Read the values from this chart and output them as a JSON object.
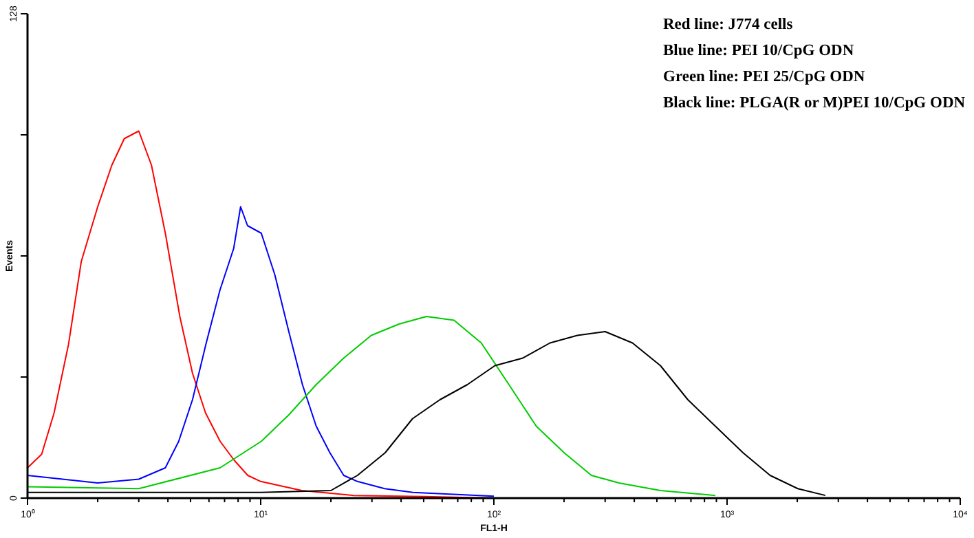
{
  "chart_data": {
    "type": "line",
    "xlabel": "FL1-H",
    "ylabel": "Events",
    "log": "x",
    "xlim": [
      1,
      10000
    ],
    "ylim": [
      0,
      128
    ],
    "xticks": [
      {
        "value": 1,
        "label": "10⁰"
      },
      {
        "value": 2,
        "label": null
      },
      {
        "value": 3,
        "label": null
      },
      {
        "value": 4,
        "label": null
      },
      {
        "value": 5,
        "label": null
      },
      {
        "value": 6,
        "label": null
      },
      {
        "value": 7,
        "label": null
      },
      {
        "value": 8,
        "label": null
      },
      {
        "value": 9,
        "label": null
      },
      {
        "value": 10,
        "label": "10¹"
      },
      {
        "value": 20,
        "label": null
      },
      {
        "value": 30,
        "label": null
      },
      {
        "value": 40,
        "label": null
      },
      {
        "value": 50,
        "label": null
      },
      {
        "value": 60,
        "label": null
      },
      {
        "value": 70,
        "label": null
      },
      {
        "value": 80,
        "label": null
      },
      {
        "value": 90,
        "label": null
      },
      {
        "value": 100,
        "label": "10²"
      },
      {
        "value": 200,
        "label": null
      },
      {
        "value": 300,
        "label": null
      },
      {
        "value": 400,
        "label": null
      },
      {
        "value": 500,
        "label": null
      },
      {
        "value": 600,
        "label": null
      },
      {
        "value": 700,
        "label": null
      },
      {
        "value": 800,
        "label": null
      },
      {
        "value": 900,
        "label": null
      },
      {
        "value": 1000,
        "label": "10³"
      },
      {
        "value": 2000,
        "label": null
      },
      {
        "value": 3000,
        "label": null
      },
      {
        "value": 4000,
        "label": null
      },
      {
        "value": 5000,
        "label": null
      },
      {
        "value": 6000,
        "label": null
      },
      {
        "value": 7000,
        "label": null
      },
      {
        "value": 8000,
        "label": null
      },
      {
        "value": 9000,
        "label": null
      },
      {
        "value": 10000,
        "label": "10⁴"
      }
    ],
    "yticks": [
      0,
      {
        "value": 32,
        "label": null
      },
      {
        "value": 64,
        "label": null
      },
      {
        "value": 96,
        "label": null
      },
      128
    ],
    "grid": false,
    "marker": "none",
    "line_style": "solid",
    "series": [
      {
        "color": "#ff0000",
        "x": [
          1,
          1.15,
          1.3,
          1.5,
          1.7,
          2,
          2.3,
          2.6,
          3,
          3.4,
          3.9,
          4.5,
          5.1,
          5.8,
          6.7,
          7.7,
          8.8,
          10,
          15,
          25,
          50,
          100
        ],
        "values": [
          8,
          11.6,
          22.5,
          40.7,
          62.5,
          77,
          88,
          95,
          97,
          88,
          70,
          48,
          33,
          22.5,
          15,
          10,
          6,
          4.4,
          2,
          0.7,
          0.4,
          0
        ]
      },
      {
        "color": "#0000ff",
        "x": [
          1,
          2,
          3,
          3.9,
          4.45,
          5.1,
          5.84,
          6.69,
          7.66,
          8.2,
          8.78,
          10.06,
          11.5,
          13.2,
          15.1,
          17.3,
          19.8,
          22.7,
          26,
          34,
          45,
          100
        ],
        "values": [
          6,
          4,
          5,
          8,
          15,
          26,
          41,
          55,
          66,
          77,
          72,
          70,
          59,
          44,
          30,
          19,
          12,
          6,
          4.4,
          2.5,
          1.5,
          0.5
        ]
      },
      {
        "color": "#00cc00",
        "x": [
          1,
          3,
          6.69,
          10.06,
          13.2,
          17.3,
          22.7,
          29.8,
          39.2,
          51.4,
          67.5,
          88.3,
          116,
          152,
          200,
          262,
          344,
          518,
          891
        ],
        "values": [
          3,
          2.5,
          8,
          15,
          22,
          30,
          37,
          43,
          46,
          48,
          47,
          41,
          30,
          19,
          12,
          6,
          4,
          2,
          0.7
        ]
      },
      {
        "color": "#000000",
        "x": [
          1,
          10,
          20,
          26,
          34.2,
          44.8,
          58.7,
          77,
          101,
          133,
          174,
          228,
          300,
          393,
          518,
          679,
          891,
          1170,
          1530,
          2010,
          2640
        ],
        "values": [
          1.5,
          1.5,
          2,
          6,
          12,
          21,
          26,
          30,
          35,
          37,
          41,
          43,
          44,
          41,
          35,
          26,
          19,
          12,
          6,
          2.5,
          0.7
        ]
      }
    ],
    "annotations": [
      "Red line: J774 cells",
      "Blue line: PEI 10/CpG ODN",
      "Green line: PEI 25/CpG ODN",
      "Black line: PLGA(R or M)PEI 10/CpG ODN"
    ]
  }
}
